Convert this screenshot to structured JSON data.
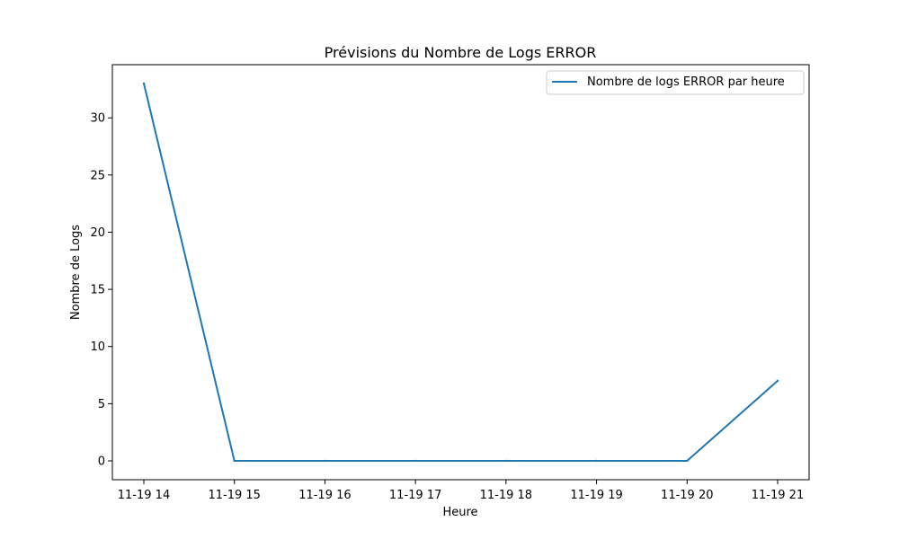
{
  "chart_data": {
    "type": "line",
    "title": "Prévisions du Nombre de Logs ERROR",
    "xlabel": "Heure",
    "ylabel": "Nombre de Logs",
    "x": [
      "11-19 14",
      "11-19 15",
      "11-19 16",
      "11-19 17",
      "11-19 18",
      "11-19 19",
      "11-19 20",
      "11-19 21"
    ],
    "x_tick_labels": [
      "11-19 14",
      "11-19 15",
      "11-19 16",
      "11-19 17",
      "11-19 18",
      "11-19 19",
      "11-19 20",
      "11-19 21"
    ],
    "y_ticks": [
      0,
      5,
      10,
      15,
      20,
      25,
      30
    ],
    "ylim": [
      -1.65,
      34.65
    ],
    "grid": false,
    "legend_position": "top-right",
    "series": [
      {
        "name": "Nombre de logs ERROR par heure",
        "color": "#1f77b4",
        "values": [
          33,
          0,
          0,
          0,
          0,
          0,
          0,
          7
        ]
      }
    ]
  }
}
